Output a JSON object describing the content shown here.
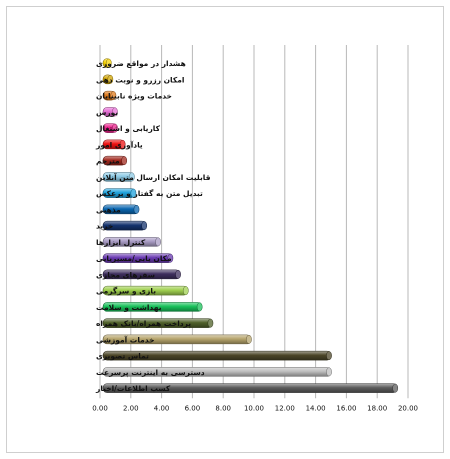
{
  "chart_data": {
    "type": "bar",
    "orientation": "horizontal",
    "categories": [
      "هشدار در مواقع ضروری",
      "امکان رزرو و نوبت دهی",
      "خدمات ویژه نابینایان",
      "بورس",
      "کاریابی و اشتغال",
      "یادآوری امور",
      "مترجم",
      "قابلیت امکان ارسال متن آنلاین",
      "تبدیل متن به گفتار و برعکس",
      "مذهبی",
      "خرید",
      "کنترل ابزارها",
      "مکان یابی/مسیریابی",
      "سفرهای مجازی",
      "بازی و سرگرمی",
      "بهداشت و سلامت",
      "پرداخت همراه/بانک همراه",
      "خدمات آموزشی",
      "تماس تصویری",
      "دسترسی به اینترنت پرسرعت",
      "کسب اطلاعات/اخبار"
    ],
    "values": [
      0.7,
      0.8,
      1.0,
      1.1,
      1.1,
      1.6,
      1.7,
      2.2,
      2.3,
      2.5,
      3.0,
      3.9,
      4.7,
      5.2,
      5.7,
      6.6,
      7.3,
      9.8,
      15.0,
      15.0,
      19.3
    ],
    "colors": [
      "#f4d000",
      "#d2a500",
      "#e07a1a",
      "#e66fd6",
      "#ec1f8c",
      "#ee1111",
      "#a2291f",
      "#8ecbe6",
      "#1ea2dc",
      "#0a66b0",
      "#14336e",
      "#a89bc4",
      "#6a3ab2",
      "#3e2e5e",
      "#a0d050",
      "#18c15a",
      "#50612a",
      "#b6a46c",
      "#4c4628",
      "#bebebe",
      "#5c5c5c"
    ],
    "xlim": [
      0,
      20
    ],
    "xticks": [
      "0.00",
      "2.00",
      "4.00",
      "6.00",
      "8.00",
      "10.00",
      "12.00",
      "14.00",
      "16.00",
      "18.00",
      "20.00"
    ],
    "grid": true,
    "legend": "none"
  }
}
